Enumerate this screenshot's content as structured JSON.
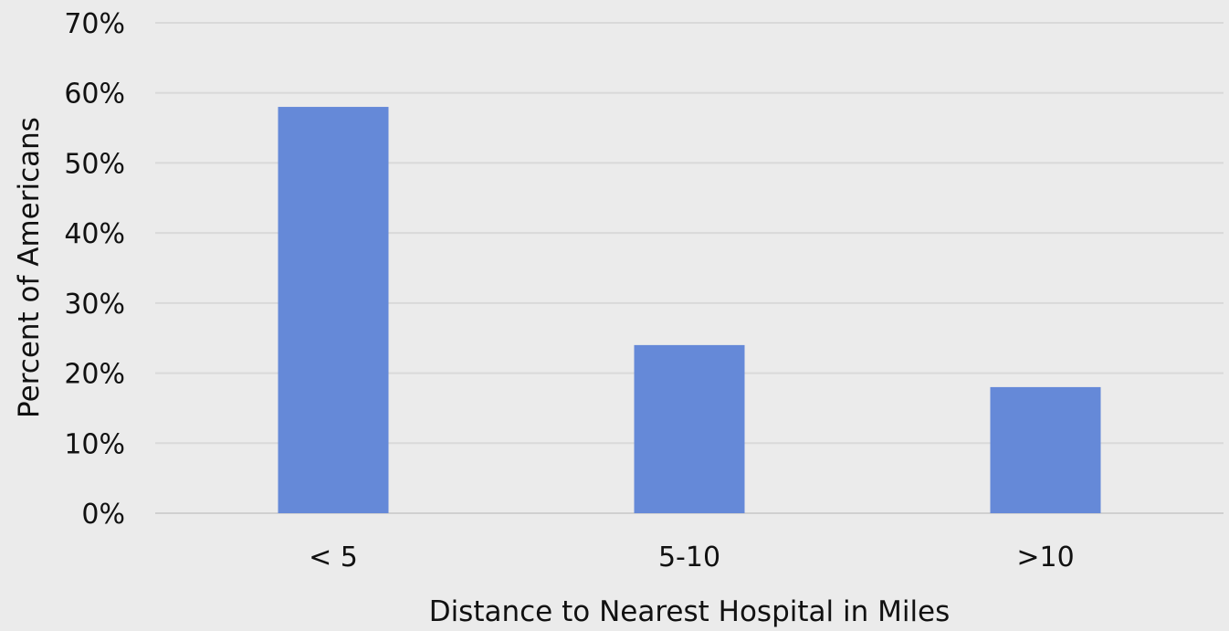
{
  "chart_data": {
    "type": "bar",
    "categories": [
      "< 5",
      "5-10",
      ">10"
    ],
    "values": [
      58,
      24,
      18
    ],
    "xlabel": "Distance to Nearest Hospital in Miles",
    "ylabel": "Percent of Americans",
    "ylim": [
      0,
      70
    ],
    "yticks": [
      "0%",
      "10%",
      "20%",
      "30%",
      "40%",
      "50%",
      "60%",
      "70%"
    ],
    "grid": true,
    "legend": "none",
    "bar_color": "#6589d8",
    "background_color": "#ebebeb",
    "gridline_color": "#d9d9d9"
  }
}
